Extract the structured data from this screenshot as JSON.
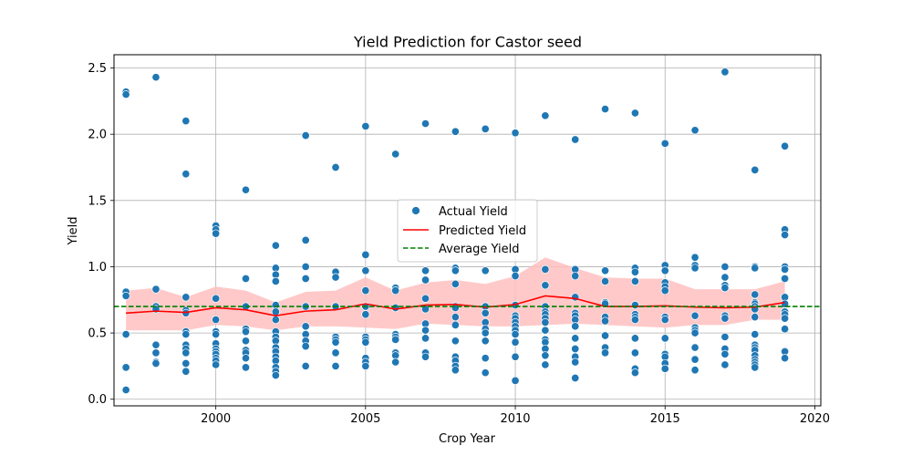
{
  "chart_data": {
    "type": "scatter",
    "title": "Yield Prediction for Castor seed",
    "xlabel": "Crop Year",
    "ylabel": "Yield",
    "xlim": [
      1996.6,
      2020.2
    ],
    "ylim": [
      -0.05,
      2.6
    ],
    "x_ticks": [
      2000,
      2005,
      2010,
      2015,
      2020
    ],
    "y_ticks": [
      0.0,
      0.5,
      1.0,
      1.5,
      2.0,
      2.5
    ],
    "x_tick_labels": [
      "2000",
      "2005",
      "2010",
      "2015",
      "2020"
    ],
    "y_tick_labels": [
      "0.0",
      "0.5",
      "1.0",
      "1.5",
      "2.0",
      "2.5"
    ],
    "grid": true,
    "legend_position": "center",
    "colors": {
      "actual": "#1f77b4",
      "predicted": "#ff0000",
      "average": "#008000",
      "band": "#ffc0c0"
    },
    "series": [
      {
        "name": "Actual Yield",
        "kind": "scatter",
        "points": [
          [
            1997,
            2.32
          ],
          [
            1997,
            2.3
          ],
          [
            1997,
            0.81
          ],
          [
            1997,
            0.78
          ],
          [
            1997,
            0.49
          ],
          [
            1997,
            0.24
          ],
          [
            1997,
            0.07
          ],
          [
            1998,
            2.43
          ],
          [
            1998,
            0.83
          ],
          [
            1998,
            0.7
          ],
          [
            1998,
            0.68
          ],
          [
            1998,
            0.41
          ],
          [
            1998,
            0.35
          ],
          [
            1998,
            0.28
          ],
          [
            1998,
            0.27
          ],
          [
            1999,
            2.1
          ],
          [
            1999,
            1.7
          ],
          [
            1999,
            0.77
          ],
          [
            1999,
            0.67
          ],
          [
            1999,
            0.65
          ],
          [
            1999,
            0.51
          ],
          [
            1999,
            0.49
          ],
          [
            1999,
            0.41
          ],
          [
            1999,
            0.38
          ],
          [
            1999,
            0.35
          ],
          [
            1999,
            0.27
          ],
          [
            1999,
            0.21
          ],
          [
            2000,
            1.31
          ],
          [
            2000,
            1.28
          ],
          [
            2000,
            1.25
          ],
          [
            2000,
            0.76
          ],
          [
            2000,
            0.6
          ],
          [
            2000,
            0.51
          ],
          [
            2000,
            0.49
          ],
          [
            2000,
            0.42
          ],
          [
            2000,
            0.38
          ],
          [
            2000,
            0.36
          ],
          [
            2000,
            0.34
          ],
          [
            2000,
            0.31
          ],
          [
            2000,
            0.29
          ],
          [
            2000,
            0.26
          ],
          [
            2001,
            1.58
          ],
          [
            2001,
            0.91
          ],
          [
            2001,
            0.7
          ],
          [
            2001,
            0.53
          ],
          [
            2001,
            0.51
          ],
          [
            2001,
            0.44
          ],
          [
            2001,
            0.37
          ],
          [
            2001,
            0.35
          ],
          [
            2001,
            0.31
          ],
          [
            2001,
            0.24
          ],
          [
            2002,
            1.16
          ],
          [
            2002,
            0.99
          ],
          [
            2002,
            0.94
          ],
          [
            2002,
            0.89
          ],
          [
            2002,
            0.71
          ],
          [
            2002,
            0.66
          ],
          [
            2002,
            0.6
          ],
          [
            2002,
            0.51
          ],
          [
            2002,
            0.47
          ],
          [
            2002,
            0.44
          ],
          [
            2002,
            0.39
          ],
          [
            2002,
            0.36
          ],
          [
            2002,
            0.32
          ],
          [
            2002,
            0.29
          ],
          [
            2002,
            0.24
          ],
          [
            2002,
            0.21
          ],
          [
            2002,
            0.18
          ],
          [
            2003,
            1.99
          ],
          [
            2003,
            1.2
          ],
          [
            2003,
            1.0
          ],
          [
            2003,
            0.91
          ],
          [
            2003,
            0.7
          ],
          [
            2003,
            0.55
          ],
          [
            2003,
            0.49
          ],
          [
            2003,
            0.44
          ],
          [
            2003,
            0.4
          ],
          [
            2003,
            0.25
          ],
          [
            2004,
            1.75
          ],
          [
            2004,
            0.96
          ],
          [
            2004,
            0.92
          ],
          [
            2004,
            0.7
          ],
          [
            2004,
            0.47
          ],
          [
            2004,
            0.45
          ],
          [
            2004,
            0.43
          ],
          [
            2004,
            0.35
          ],
          [
            2004,
            0.25
          ],
          [
            2005,
            2.06
          ],
          [
            2005,
            1.09
          ],
          [
            2005,
            0.97
          ],
          [
            2005,
            0.82
          ],
          [
            2005,
            0.7
          ],
          [
            2005,
            0.64
          ],
          [
            2005,
            0.47
          ],
          [
            2005,
            0.45
          ],
          [
            2005,
            0.43
          ],
          [
            2005,
            0.31
          ],
          [
            2005,
            0.28
          ],
          [
            2005,
            0.25
          ],
          [
            2006,
            1.85
          ],
          [
            2006,
            0.84
          ],
          [
            2006,
            0.82
          ],
          [
            2006,
            0.69
          ],
          [
            2006,
            0.49
          ],
          [
            2006,
            0.47
          ],
          [
            2006,
            0.45
          ],
          [
            2006,
            0.35
          ],
          [
            2006,
            0.33
          ],
          [
            2006,
            0.28
          ],
          [
            2007,
            2.08
          ],
          [
            2007,
            0.97
          ],
          [
            2007,
            0.9
          ],
          [
            2007,
            0.76
          ],
          [
            2007,
            0.68
          ],
          [
            2007,
            0.57
          ],
          [
            2007,
            0.52
          ],
          [
            2007,
            0.46
          ],
          [
            2007,
            0.35
          ],
          [
            2007,
            0.32
          ],
          [
            2008,
            2.02
          ],
          [
            2008,
            0.99
          ],
          [
            2008,
            0.97
          ],
          [
            2008,
            0.87
          ],
          [
            2008,
            0.7
          ],
          [
            2008,
            0.69
          ],
          [
            2008,
            0.62
          ],
          [
            2008,
            0.56
          ],
          [
            2008,
            0.44
          ],
          [
            2008,
            0.32
          ],
          [
            2008,
            0.29
          ],
          [
            2008,
            0.25
          ],
          [
            2008,
            0.22
          ],
          [
            2009,
            2.04
          ],
          [
            2009,
            0.97
          ],
          [
            2009,
            0.7
          ],
          [
            2009,
            0.65
          ],
          [
            2009,
            0.58
          ],
          [
            2009,
            0.53
          ],
          [
            2009,
            0.5
          ],
          [
            2009,
            0.44
          ],
          [
            2009,
            0.31
          ],
          [
            2009,
            0.2
          ],
          [
            2010,
            2.01
          ],
          [
            2010,
            0.98
          ],
          [
            2010,
            0.93
          ],
          [
            2010,
            0.71
          ],
          [
            2010,
            0.63
          ],
          [
            2010,
            0.61
          ],
          [
            2010,
            0.58
          ],
          [
            2010,
            0.55
          ],
          [
            2010,
            0.52
          ],
          [
            2010,
            0.49
          ],
          [
            2010,
            0.43
          ],
          [
            2010,
            0.32
          ],
          [
            2010,
            0.14
          ],
          [
            2011,
            2.14
          ],
          [
            2011,
            0.98
          ],
          [
            2011,
            0.86
          ],
          [
            2011,
            0.7
          ],
          [
            2011,
            0.66
          ],
          [
            2011,
            0.64
          ],
          [
            2011,
            0.61
          ],
          [
            2011,
            0.58
          ],
          [
            2011,
            0.52
          ],
          [
            2011,
            0.45
          ],
          [
            2011,
            0.43
          ],
          [
            2011,
            0.38
          ],
          [
            2011,
            0.33
          ],
          [
            2011,
            0.26
          ],
          [
            2012,
            1.96
          ],
          [
            2012,
            0.98
          ],
          [
            2012,
            0.93
          ],
          [
            2012,
            0.77
          ],
          [
            2012,
            0.65
          ],
          [
            2012,
            0.63
          ],
          [
            2012,
            0.6
          ],
          [
            2012,
            0.55
          ],
          [
            2012,
            0.46
          ],
          [
            2012,
            0.38
          ],
          [
            2012,
            0.32
          ],
          [
            2012,
            0.28
          ],
          [
            2012,
            0.16
          ],
          [
            2013,
            2.19
          ],
          [
            2013,
            0.97
          ],
          [
            2013,
            0.89
          ],
          [
            2013,
            0.73
          ],
          [
            2013,
            0.72
          ],
          [
            2013,
            0.62
          ],
          [
            2013,
            0.59
          ],
          [
            2013,
            0.48
          ],
          [
            2013,
            0.39
          ],
          [
            2013,
            0.35
          ],
          [
            2014,
            2.16
          ],
          [
            2014,
            0.99
          ],
          [
            2014,
            0.96
          ],
          [
            2014,
            0.89
          ],
          [
            2014,
            0.71
          ],
          [
            2014,
            0.64
          ],
          [
            2014,
            0.62
          ],
          [
            2014,
            0.6
          ],
          [
            2014,
            0.46
          ],
          [
            2014,
            0.35
          ],
          [
            2014,
            0.23
          ],
          [
            2014,
            0.2
          ],
          [
            2015,
            1.93
          ],
          [
            2015,
            1.01
          ],
          [
            2015,
            0.97
          ],
          [
            2015,
            0.88
          ],
          [
            2015,
            0.85
          ],
          [
            2015,
            0.82
          ],
          [
            2015,
            0.62
          ],
          [
            2015,
            0.6
          ],
          [
            2015,
            0.46
          ],
          [
            2015,
            0.34
          ],
          [
            2015,
            0.32
          ],
          [
            2015,
            0.27
          ],
          [
            2015,
            0.23
          ],
          [
            2016,
            2.03
          ],
          [
            2016,
            1.07
          ],
          [
            2016,
            1.01
          ],
          [
            2016,
            0.99
          ],
          [
            2016,
            0.63
          ],
          [
            2016,
            0.54
          ],
          [
            2016,
            0.52
          ],
          [
            2016,
            0.5
          ],
          [
            2016,
            0.39
          ],
          [
            2016,
            0.3
          ],
          [
            2016,
            0.22
          ],
          [
            2017,
            2.47
          ],
          [
            2017,
            1.0
          ],
          [
            2017,
            0.92
          ],
          [
            2017,
            0.86
          ],
          [
            2017,
            0.84
          ],
          [
            2017,
            0.63
          ],
          [
            2017,
            0.61
          ],
          [
            2017,
            0.47
          ],
          [
            2017,
            0.38
          ],
          [
            2017,
            0.34
          ],
          [
            2017,
            0.26
          ],
          [
            2018,
            1.73
          ],
          [
            2018,
            1.0
          ],
          [
            2018,
            0.99
          ],
          [
            2018,
            0.79
          ],
          [
            2018,
            0.73
          ],
          [
            2018,
            0.72
          ],
          [
            2018,
            0.7
          ],
          [
            2018,
            0.68
          ],
          [
            2018,
            0.62
          ],
          [
            2018,
            0.49
          ],
          [
            2018,
            0.41
          ],
          [
            2018,
            0.39
          ],
          [
            2018,
            0.37
          ],
          [
            2018,
            0.33
          ],
          [
            2018,
            0.3
          ],
          [
            2018,
            0.28
          ],
          [
            2018,
            0.26
          ],
          [
            2018,
            0.24
          ],
          [
            2019,
            1.91
          ],
          [
            2019,
            1.28
          ],
          [
            2019,
            1.24
          ],
          [
            2019,
            1.0
          ],
          [
            2019,
            0.98
          ],
          [
            2019,
            0.91
          ],
          [
            2019,
            0.77
          ],
          [
            2019,
            0.72
          ],
          [
            2019,
            0.66
          ],
          [
            2019,
            0.64
          ],
          [
            2019,
            0.61
          ],
          [
            2019,
            0.53
          ],
          [
            2019,
            0.36
          ],
          [
            2019,
            0.31
          ]
        ]
      },
      {
        "name": "Predicted Yield",
        "kind": "line",
        "x": [
          1997,
          1998,
          1999,
          2000,
          2001,
          2002,
          2003,
          2004,
          2005,
          2006,
          2007,
          2008,
          2009,
          2010,
          2011,
          2012,
          2013,
          2014,
          2015,
          2016,
          2017,
          2018,
          2019
        ],
        "values": [
          0.65,
          0.665,
          0.655,
          0.69,
          0.675,
          0.63,
          0.665,
          0.675,
          0.72,
          0.68,
          0.71,
          0.715,
          0.695,
          0.715,
          0.78,
          0.76,
          0.7,
          0.7,
          0.705,
          0.695,
          0.69,
          0.695,
          0.73
        ],
        "band_upper": [
          0.82,
          0.84,
          0.77,
          0.85,
          0.82,
          0.73,
          0.81,
          0.82,
          0.92,
          0.82,
          0.88,
          0.9,
          0.87,
          0.93,
          1.07,
          0.99,
          0.92,
          0.91,
          0.91,
          0.83,
          0.83,
          0.83,
          0.89
        ],
        "band_lower": [
          0.52,
          0.52,
          0.52,
          0.56,
          0.55,
          0.52,
          0.55,
          0.55,
          0.54,
          0.53,
          0.57,
          0.56,
          0.55,
          0.55,
          0.56,
          0.57,
          0.56,
          0.55,
          0.54,
          0.56,
          0.56,
          0.6,
          0.6
        ]
      },
      {
        "name": "Average Yield",
        "kind": "hline",
        "value": 0.7
      }
    ],
    "legend": [
      "Actual Yield",
      "Predicted Yield",
      "Average Yield"
    ]
  }
}
